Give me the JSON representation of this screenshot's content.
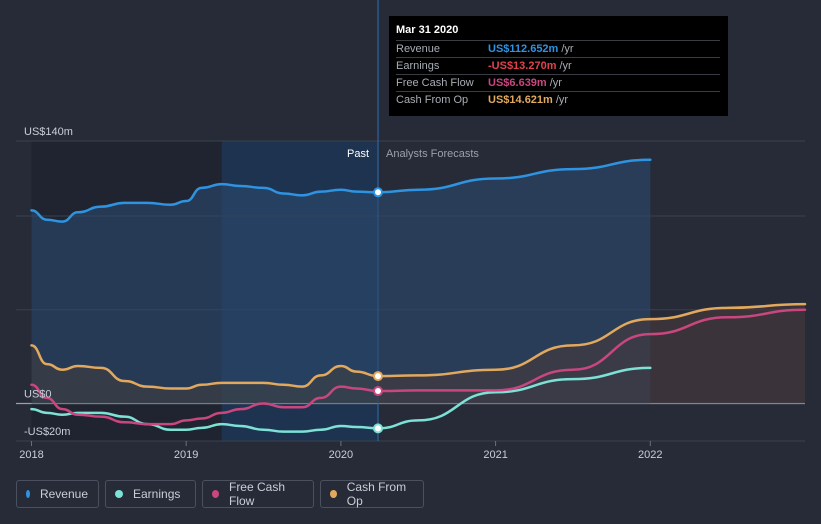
{
  "chart_data": {
    "type": "line",
    "x": [
      2018.0,
      2018.1,
      2018.2,
      2018.3,
      2018.45,
      2018.6,
      2018.75,
      2018.9,
      2019.0,
      2019.1,
      2019.23,
      2019.35,
      2019.5,
      2019.63,
      2019.75,
      2019.87,
      2020.0,
      2020.1,
      2020.24
    ],
    "series": [
      {
        "name": "Revenue",
        "color": "#2e93e0",
        "values": [
          103,
          98,
          97,
          102,
          105,
          107,
          107,
          106,
          108,
          115,
          117,
          116,
          115,
          112,
          111,
          113,
          114,
          113,
          112.652
        ],
        "forecast_x": [
          2020.24,
          2020.5,
          2021.0,
          2021.5,
          2022.0
        ],
        "forecast_values": [
          112.652,
          114,
          120,
          125,
          130
        ]
      },
      {
        "name": "Earnings",
        "color": "#7de1d6",
        "values": [
          -3,
          -5,
          -6,
          -5,
          -5,
          -7,
          -11,
          -14,
          -14,
          -13,
          -11,
          -12,
          -14,
          -15,
          -15,
          -14,
          -12,
          -12.5,
          -13.27
        ],
        "forecast_x": [
          2020.24,
          2020.5,
          2021.0,
          2021.5,
          2022.0
        ],
        "forecast_values": [
          -13.27,
          -9,
          6,
          13,
          19
        ]
      },
      {
        "name": "Free Cash Flow",
        "color": "#c9467f",
        "values": [
          10,
          3,
          -3,
          -6,
          -7,
          -10,
          -11,
          -11,
          -9,
          -8,
          -5,
          -3,
          0,
          -2,
          -2,
          3,
          9,
          8,
          6.639
        ],
        "forecast_x": [
          2020.24,
          2020.5,
          2021.0,
          2021.5,
          2022.0,
          2022.5,
          2023.0
        ],
        "forecast_values": [
          6.639,
          7,
          7,
          18,
          37,
          46,
          50
        ]
      },
      {
        "name": "Cash From Op",
        "color": "#e2a95e",
        "values": [
          31,
          21,
          18,
          20,
          19,
          12,
          9,
          8,
          8,
          10,
          11,
          11,
          11,
          10,
          9,
          15,
          20,
          17,
          14.621
        ],
        "forecast_x": [
          2020.24,
          2020.5,
          2021.0,
          2021.5,
          2022.0,
          2022.5,
          2023.0
        ],
        "forecast_values": [
          14.621,
          15,
          18,
          31,
          45,
          51,
          53
        ]
      }
    ],
    "xlim": [
      2017.9,
      2023.0
    ],
    "ylim": [
      -20,
      140
    ],
    "xticks": [
      "2018",
      "2019",
      "2020",
      "2021",
      "2022"
    ],
    "xtick_values": [
      2018,
      2019,
      2020,
      2021,
      2022
    ],
    "yticks": [
      "US$140m",
      "US$0",
      "-US$20m"
    ],
    "ytick_values": [
      140,
      0,
      -20
    ],
    "past_label": "Past",
    "forecast_label": "Analysts Forecasts",
    "divider_x": 2020.24,
    "highlight_start": 2019.23,
    "marker_point": {
      "x": 2020.24
    }
  },
  "tooltip": {
    "date": "Mar 31 2020",
    "rows": [
      {
        "label": "Revenue",
        "value": "US$112.652m",
        "unit": "/yr",
        "color": "#2e93e0"
      },
      {
        "label": "Earnings",
        "value": "-US$13.270m",
        "unit": "/yr",
        "color": "#e0424b"
      },
      {
        "label": "Free Cash Flow",
        "value": "US$6.639m",
        "unit": "/yr",
        "color": "#c9467f"
      },
      {
        "label": "Cash From Op",
        "value": "US$14.621m",
        "unit": "/yr",
        "color": "#e2a95e"
      }
    ]
  },
  "legend": [
    {
      "label": "Revenue",
      "color": "#2e93e0"
    },
    {
      "label": "Earnings",
      "color": "#7de1d6"
    },
    {
      "label": "Free Cash Flow",
      "color": "#c9467f"
    },
    {
      "label": "Cash From Op",
      "color": "#e2a95e"
    }
  ]
}
